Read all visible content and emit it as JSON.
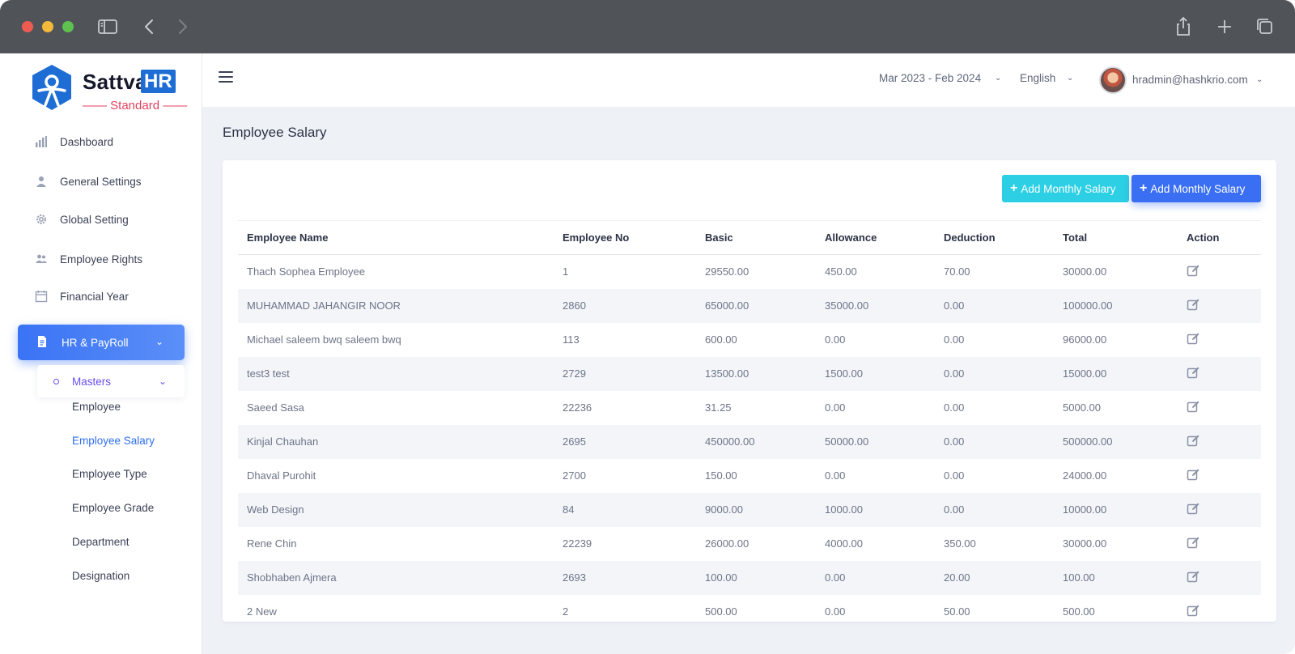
{
  "brand": {
    "name": "Sattva",
    "badge": "HR",
    "edition": "—— Standard ——"
  },
  "sidebar": {
    "items": [
      {
        "label": "Dashboard",
        "icon": "bar-chart-icon"
      },
      {
        "label": "General Settings",
        "icon": "user-icon"
      },
      {
        "label": "Global Setting",
        "icon": "gear-icon"
      },
      {
        "label": "Employee Rights",
        "icon": "users-icon"
      },
      {
        "label": "Financial Year",
        "icon": "calendar-icon"
      }
    ],
    "active": {
      "label": "HR & PayRoll",
      "icon": "document-icon"
    },
    "masters": {
      "label": "Masters"
    },
    "sub_items": [
      {
        "label": "Employee"
      },
      {
        "label": "Employee Salary"
      },
      {
        "label": "Employee Type"
      },
      {
        "label": "Employee Grade"
      },
      {
        "label": "Department"
      },
      {
        "label": "Designation"
      }
    ]
  },
  "header": {
    "financial_year": "Mar 2023 - Feb 2024",
    "language": "English",
    "user_email": "hradmin@hashkrio.com"
  },
  "page": {
    "title": "Employee Salary",
    "buttons": {
      "add_1": "Add Monthly Salary",
      "add_2": "Add Monthly Salary"
    }
  },
  "table": {
    "columns": [
      "Employee Name",
      "Employee No",
      "Basic",
      "Allowance",
      "Deduction",
      "Total",
      "Action"
    ],
    "rows": [
      [
        "Thach Sophea Employee",
        "1",
        "29550.00",
        "450.00",
        "70.00",
        "30000.00"
      ],
      [
        "MUHAMMAD JAHANGIR NOOR",
        "2860",
        "65000.00",
        "35000.00",
        "0.00",
        "100000.00"
      ],
      [
        "Michael saleem bwq saleem bwq",
        "113",
        "600.00",
        "0.00",
        "0.00",
        "96000.00"
      ],
      [
        "test3 test",
        "2729",
        "13500.00",
        "1500.00",
        "0.00",
        "15000.00"
      ],
      [
        "Saeed Sasa",
        "22236",
        "31.25",
        "0.00",
        "0.00",
        "5000.00"
      ],
      [
        "Kinjal Chauhan",
        "2695",
        "450000.00",
        "50000.00",
        "0.00",
        "500000.00"
      ],
      [
        "Dhaval Purohit",
        "2700",
        "150.00",
        "0.00",
        "0.00",
        "24000.00"
      ],
      [
        "Web Design",
        "84",
        "9000.00",
        "1000.00",
        "0.00",
        "10000.00"
      ],
      [
        "Rene Chin",
        "22239",
        "26000.00",
        "4000.00",
        "350.00",
        "30000.00"
      ],
      [
        "Shobhaben Ajmera",
        "2693",
        "100.00",
        "0.00",
        "20.00",
        "100.00"
      ],
      [
        "2 New",
        "2",
        "500.00",
        "0.00",
        "50.00",
        "500.00"
      ]
    ]
  }
}
